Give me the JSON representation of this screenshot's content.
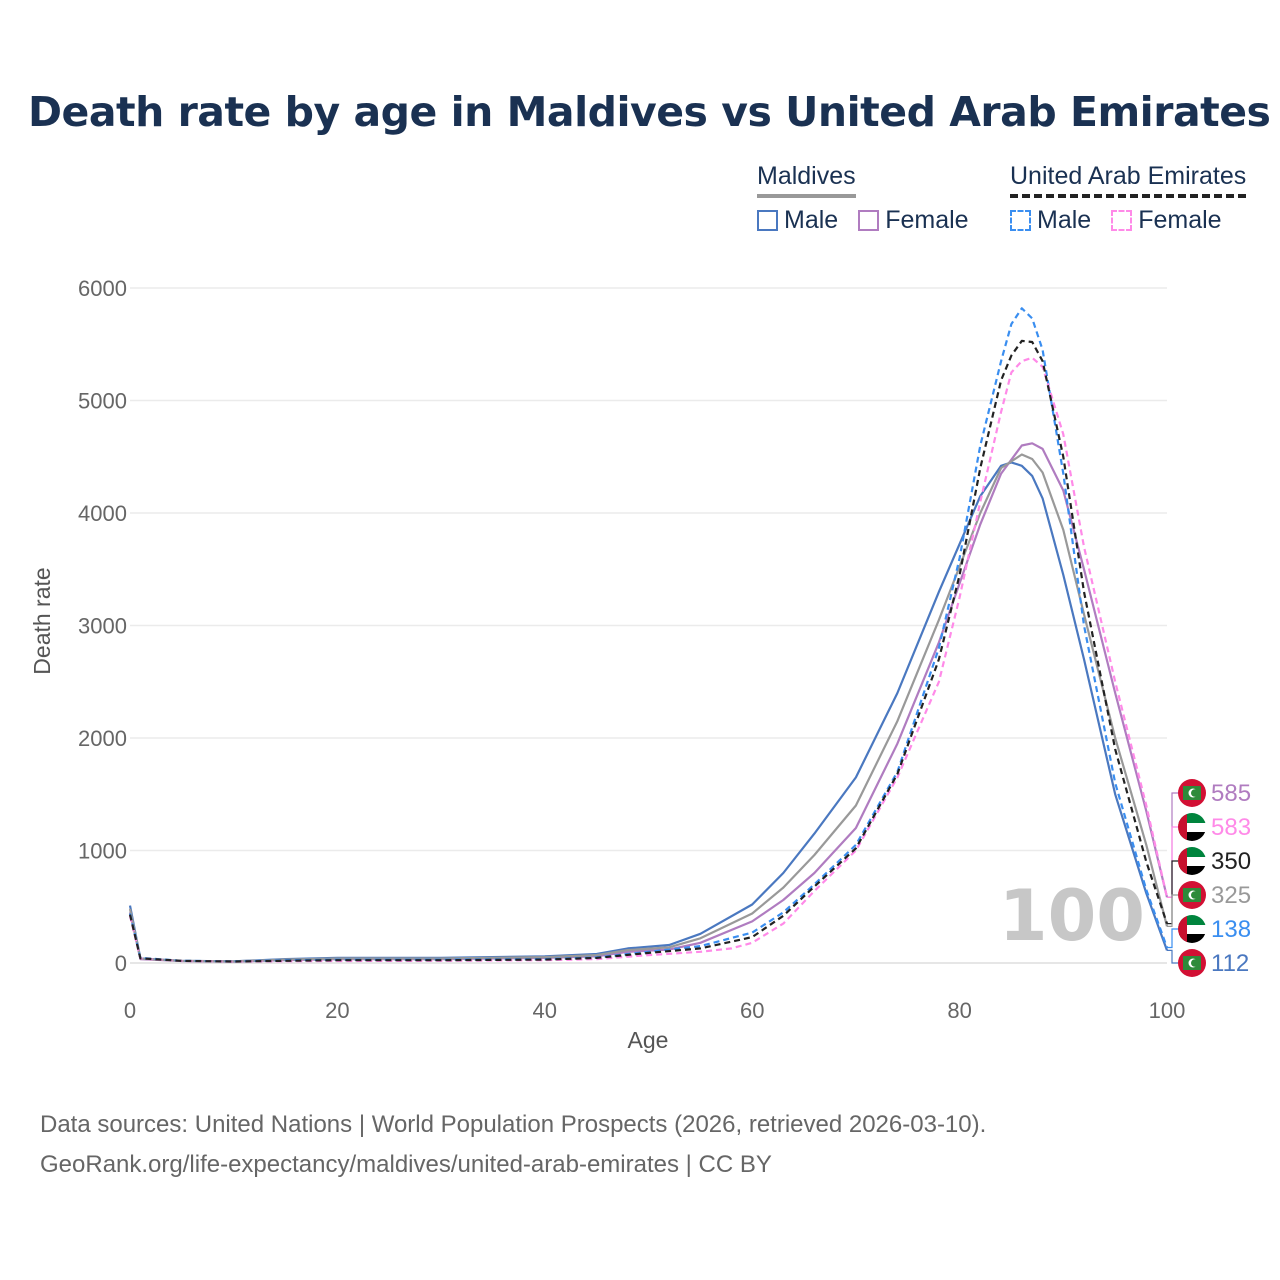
{
  "title": "Death rate by age in Maldives vs United Arab Emirates",
  "legend": {
    "groups": [
      {
        "country": "Maldives",
        "style": "solid",
        "items": [
          {
            "label": "Male",
            "color": "#4a78c0"
          },
          {
            "label": "Female",
            "color": "#b07cc0"
          }
        ]
      },
      {
        "country": "United Arab Emirates",
        "style": "dashed",
        "items": [
          {
            "label": "Male",
            "color": "#3a8ef0"
          },
          {
            "label": "Female",
            "color": "#ff8ae8"
          }
        ]
      }
    ]
  },
  "watermark": "100",
  "footer": {
    "line1": "Data sources: United Nations | World Population Prospects (2026, retrieved 2026-03-10).",
    "line2": "GeoRank.org/life-expectancy/maldives/united-arab-emirates | CC BY"
  },
  "chart_data": {
    "type": "line",
    "title": "Death rate by age in Maldives vs United Arab Emirates",
    "xlabel": "Age",
    "ylabel": "Death rate",
    "xlim": [
      0,
      100
    ],
    "ylim": [
      0,
      6000
    ],
    "xticks": [
      0,
      20,
      40,
      60,
      80,
      100
    ],
    "yticks": [
      0,
      1000,
      2000,
      3000,
      4000,
      5000,
      6000
    ],
    "grid": true,
    "series": [
      {
        "name": "Maldives Male",
        "country": "Maldives",
        "flag": "maldives",
        "color": "#4a78c0",
        "dash": false,
        "x": [
          0,
          1,
          5,
          10,
          15,
          20,
          30,
          40,
          45,
          48,
          52,
          55,
          60,
          63,
          66,
          70,
          74,
          78,
          82,
          84,
          85,
          86,
          87,
          88,
          90,
          92,
          95,
          98,
          100
        ],
        "y": [
          510,
          40,
          20,
          15,
          35,
          45,
          45,
          60,
          80,
          130,
          160,
          260,
          520,
          800,
          1150,
          1650,
          2400,
          3300,
          4150,
          4420,
          4450,
          4420,
          4330,
          4130,
          3450,
          2700,
          1500,
          620,
          112
        ],
        "end_value": "112"
      },
      {
        "name": "Maldives Female",
        "country": "Maldives",
        "flag": "maldives",
        "color": "#b07cc0",
        "dash": false,
        "x": [
          0,
          1,
          5,
          10,
          15,
          20,
          30,
          40,
          45,
          48,
          52,
          55,
          60,
          63,
          66,
          70,
          74,
          78,
          82,
          84,
          86,
          87,
          88,
          90,
          92,
          95,
          98,
          100
        ],
        "y": [
          450,
          35,
          18,
          12,
          25,
          35,
          35,
          45,
          60,
          100,
          120,
          180,
          370,
          560,
          800,
          1200,
          1950,
          2850,
          3900,
          4350,
          4600,
          4620,
          4570,
          4200,
          3500,
          2400,
          1350,
          585
        ],
        "end_value": "585"
      },
      {
        "name": "Maldives Both",
        "country": "Maldives",
        "flag": "maldives",
        "color": "#999999",
        "dash": false,
        "x": [
          0,
          1,
          5,
          10,
          15,
          20,
          30,
          40,
          45,
          48,
          52,
          55,
          60,
          63,
          66,
          70,
          74,
          78,
          82,
          84,
          86,
          87,
          88,
          90,
          92,
          95,
          98,
          100
        ],
        "y": [
          480,
          38,
          19,
          14,
          30,
          40,
          40,
          52,
          70,
          115,
          140,
          220,
          440,
          670,
          960,
          1400,
          2150,
          3050,
          4000,
          4400,
          4520,
          4480,
          4360,
          3850,
          3100,
          2000,
          1050,
          325
        ],
        "end_value": "325"
      },
      {
        "name": "United Arab Emirates Male",
        "country": "United Arab Emirates",
        "flag": "uae",
        "color": "#3a8ef0",
        "dash": true,
        "x": [
          0,
          1,
          5,
          10,
          15,
          20,
          30,
          40,
          45,
          50,
          55,
          60,
          63,
          66,
          70,
          74,
          78,
          80,
          82,
          84,
          85,
          86,
          87,
          88,
          90,
          92,
          95,
          98,
          100
        ],
        "y": [
          440,
          45,
          20,
          14,
          25,
          30,
          30,
          35,
          50,
          100,
          150,
          270,
          450,
          700,
          1050,
          1700,
          2800,
          3600,
          4600,
          5350,
          5680,
          5820,
          5730,
          5450,
          4350,
          3000,
          1600,
          650,
          138
        ],
        "end_value": "138"
      },
      {
        "name": "United Arab Emirates Female",
        "country": "United Arab Emirates",
        "flag": "uae",
        "color": "#ff8ae8",
        "dash": true,
        "x": [
          0,
          1,
          5,
          10,
          15,
          20,
          30,
          40,
          45,
          50,
          55,
          58,
          60,
          63,
          66,
          70,
          74,
          78,
          80,
          82,
          84,
          85,
          86,
          87,
          88,
          90,
          92,
          95,
          98,
          100
        ],
        "y": [
          420,
          40,
          18,
          12,
          15,
          18,
          20,
          25,
          35,
          70,
          100,
          130,
          180,
          350,
          640,
          1000,
          1650,
          2500,
          3250,
          4100,
          4900,
          5250,
          5350,
          5380,
          5300,
          4700,
          3700,
          2500,
          1400,
          583
        ],
        "end_value": "583"
      },
      {
        "name": "United Arab Emirates Both",
        "country": "United Arab Emirates",
        "flag": "uae",
        "color": "#222222",
        "dash": true,
        "x": [
          0,
          1,
          5,
          10,
          15,
          20,
          30,
          40,
          45,
          50,
          55,
          60,
          63,
          66,
          70,
          74,
          78,
          80,
          82,
          84,
          85,
          86,
          87,
          88,
          90,
          92,
          95,
          98,
          100
        ],
        "y": [
          430,
          42,
          19,
          13,
          20,
          25,
          25,
          30,
          45,
          90,
          130,
          230,
          420,
          680,
          1020,
          1680,
          2700,
          3450,
          4400,
          5180,
          5400,
          5530,
          5520,
          5350,
          4500,
          3300,
          1900,
          900,
          350
        ],
        "end_value": "350"
      }
    ]
  }
}
